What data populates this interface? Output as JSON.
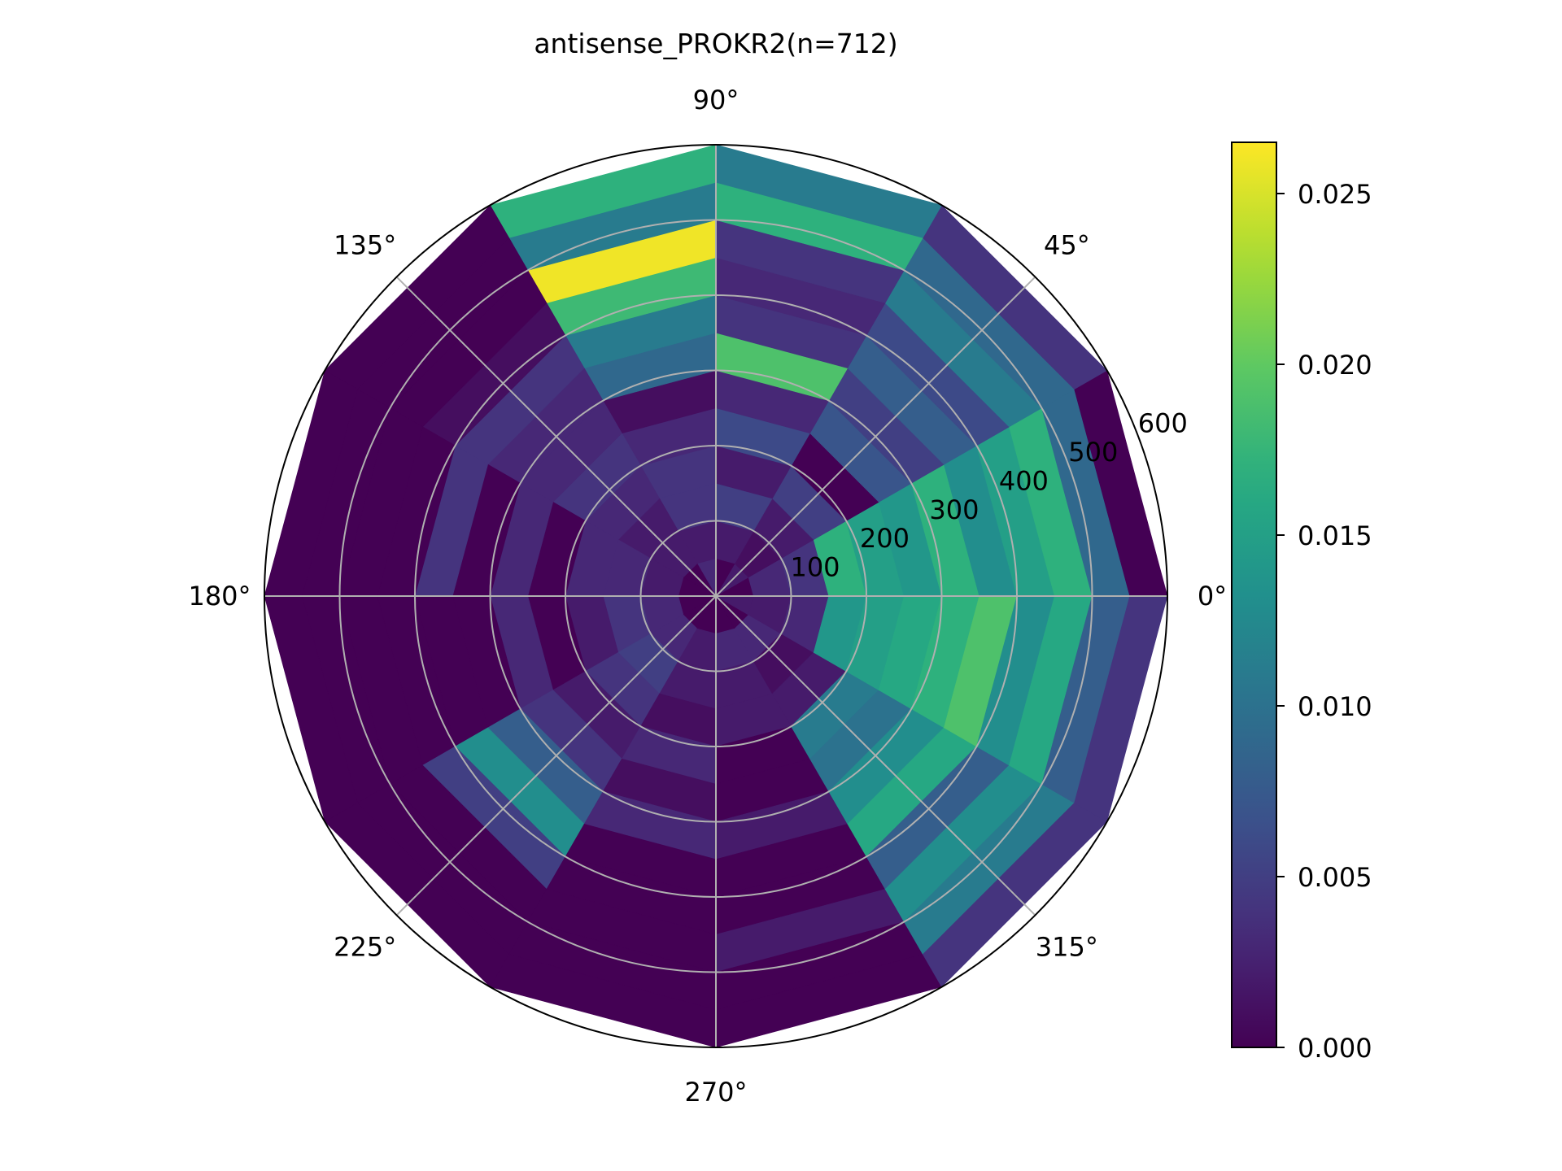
{
  "chart_data": {
    "type": "heatmap",
    "subtype": "polar",
    "title": "antisense_PROKR2(n=712)",
    "theta_unit": "degrees",
    "theta_bin_edges": [
      0,
      30,
      60,
      90,
      120,
      150,
      180,
      210,
      240,
      270,
      300,
      330,
      360
    ],
    "r_bin_edges": [
      0,
      50,
      100,
      150,
      200,
      250,
      300,
      350,
      400,
      450,
      500,
      550,
      600
    ],
    "r_ticks": [
      100,
      200,
      300,
      400,
      500,
      600
    ],
    "r_tick_labels": [
      "100",
      "200",
      "300",
      "400",
      "500",
      "600"
    ],
    "rlim": [
      0,
      600
    ],
    "theta_ticks": [
      0,
      45,
      90,
      135,
      180,
      225,
      270,
      315
    ],
    "theta_tick_labels": [
      "0°",
      "45°",
      "90°",
      "135°",
      "180°",
      "225°",
      "270°",
      "315°"
    ],
    "grid": true,
    "colormap": "viridis",
    "colorbar": {
      "range": [
        0,
        0.0265
      ],
      "ticks": [
        0.0,
        0.005,
        0.01,
        0.015,
        0.02,
        0.025
      ],
      "tick_labels": [
        "0.000",
        "0.005",
        "0.010",
        "0.015",
        "0.020",
        "0.025"
      ],
      "placement": "right"
    },
    "values_note": "rows = theta bins (0-30, 30-60, ..., 330-360 deg); columns = radial bins (0-50, 50-100, ..., 550-600)",
    "values": [
      [
        0.0,
        0.003,
        0.004,
        0.017,
        0.015,
        0.014,
        0.017,
        0.013,
        0.015,
        0.017,
        0.009,
        0.0
      ],
      [
        0.002,
        0.001,
        0.002,
        0.005,
        0.0,
        0.007,
        0.005,
        0.008,
        0.006,
        0.011,
        0.009,
        0.004
      ],
      [
        0.0,
        0.002,
        0.005,
        0.002,
        0.006,
        0.003,
        0.019,
        0.004,
        0.003,
        0.004,
        0.017,
        0.011
      ],
      [
        0.003,
        0.002,
        0.004,
        0.004,
        0.003,
        0.001,
        0.009,
        0.011,
        0.018,
        0.026,
        0.011,
        0.017
      ],
      [
        0.0,
        0.002,
        0.002,
        0.003,
        0.004,
        0.003,
        0.003,
        0.004,
        0.001,
        0.0,
        0.0,
        0.0
      ],
      [
        0.0,
        0.002,
        0.003,
        0.003,
        0.0,
        0.003,
        0.0,
        0.004,
        0.0,
        0.0,
        0.0,
        0.0
      ],
      [
        0.0,
        0.003,
        0.004,
        0.002,
        0.0,
        0.003,
        0.0,
        0.0,
        0.0,
        0.0,
        0.0,
        0.0
      ],
      [
        0.0,
        0.003,
        0.005,
        0.004,
        0.002,
        0.004,
        0.008,
        0.013,
        0.005,
        0.0,
        0.0,
        0.0
      ],
      [
        0.0,
        0.002,
        0.002,
        0.001,
        0.003,
        0.001,
        0.003,
        0.0,
        0.0,
        0.0,
        0.0,
        0.0
      ],
      [
        0.0,
        0.003,
        0.002,
        0.002,
        0.0,
        0.0,
        0.002,
        0.0,
        0.0,
        0.002,
        0.0,
        0.0
      ],
      [
        0.0,
        0.003,
        0.001,
        0.002,
        0.011,
        0.01,
        0.013,
        0.016,
        0.008,
        0.013,
        0.011,
        0.004
      ],
      [
        0.002,
        0.002,
        0.003,
        0.014,
        0.015,
        0.016,
        0.017,
        0.019,
        0.013,
        0.016,
        0.008,
        0.004
      ]
    ]
  }
}
